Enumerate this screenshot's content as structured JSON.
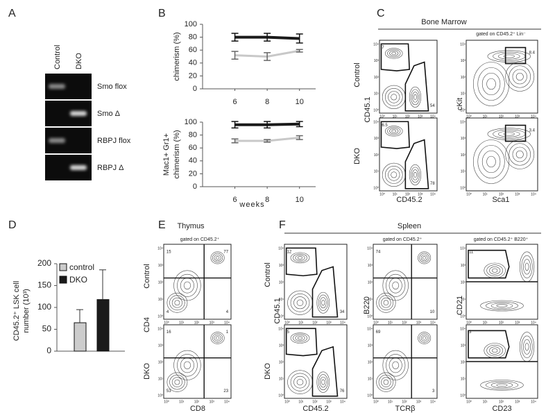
{
  "panel_labels": [
    "A",
    "B",
    "C",
    "D",
    "E",
    "F"
  ],
  "gel": {
    "lanes": [
      "Control",
      "DKO"
    ],
    "rows": [
      "Smo flox",
      "Smo Δ",
      "RBPJ flox",
      "RBPJ Δ"
    ]
  },
  "flow_ticks": [
    "10⁰",
    "10¹",
    "10²",
    "10³",
    "10⁴"
  ],
  "chart_data": [
    {
      "type": "line",
      "ylabel": [
        "chimerism (%)"
      ],
      "x": [
        6,
        8,
        10
      ],
      "xlim": [
        4,
        11
      ],
      "xticks": [
        6,
        8,
        10
      ],
      "ylim": [
        0,
        100
      ],
      "yticks": [
        0,
        20,
        40,
        60,
        80,
        100
      ],
      "series": [
        {
          "color": "#1a1a1a",
          "values": [
            80,
            80,
            78
          ],
          "errors": [
            6,
            6,
            7
          ]
        },
        {
          "color": "#c8c8c8",
          "values": [
            52,
            50,
            59
          ],
          "errors": [
            6,
            6,
            2
          ]
        }
      ]
    },
    {
      "type": "line",
      "ylabel": [
        "Mac1+ Gr1+",
        "chimerism (%)"
      ],
      "xlabel": "weeks",
      "x": [
        6,
        8,
        10
      ],
      "xlim": [
        4,
        11
      ],
      "xticks": [
        6,
        8,
        10
      ],
      "ylim": [
        0,
        100
      ],
      "yticks": [
        0,
        20,
        40,
        60,
        80,
        100
      ],
      "series": [
        {
          "color": "#1a1a1a",
          "values": [
            96,
            96,
            97
          ],
          "errors": [
            5,
            5,
            4
          ]
        },
        {
          "color": "#c8c8c8",
          "values": [
            71,
            71,
            76
          ],
          "errors": [
            3,
            2,
            3
          ]
        }
      ]
    },
    {
      "type": "bar",
      "ylabel": [
        "CD45.2⁺ LSK cell",
        "number (10³)"
      ],
      "categories": [
        null
      ],
      "ylim": [
        0,
        200
      ],
      "yticks": [
        0,
        50,
        100,
        150,
        200
      ],
      "series": [
        {
          "name": "control",
          "color": "#cccccc",
          "values": [
            65
          ],
          "errors": [
            30
          ]
        },
        {
          "name": "DKO",
          "color": "#1a1a1a",
          "values": [
            118
          ],
          "errors": [
            68
          ]
        }
      ]
    }
  ],
  "bone_marrow": {
    "title": "Bone Marrow",
    "rows": [
      "Control",
      "DKO"
    ],
    "notes": [
      "gated on CD45.2⁺ Lin⁻"
    ],
    "plots": [
      {
        "ylabel": "CD45.1",
        "xlabel": "CD45.2",
        "gates": [
          [
            "7",
            "54"
          ],
          [
            "6.5",
            "78"
          ]
        ]
      },
      {
        "ylabel": "cKit",
        "xlabel": "Sca1",
        "gates": [
          [
            "8.4"
          ],
          [
            "3.4"
          ]
        ]
      }
    ]
  },
  "thymus": {
    "title": "Thymus",
    "rows": [
      "Control",
      "DKO"
    ],
    "notes": [
      "gated on CD45.2⁺"
    ],
    "plots": [
      {
        "ylabel": "CD4",
        "xlabel": "CD8",
        "gates": [
          [
            "15",
            "77",
            "4",
            "4"
          ],
          [
            "16",
            "1",
            "53",
            "23"
          ]
        ]
      }
    ]
  },
  "spleen": {
    "title": "Spleen",
    "rows": [
      "Control",
      "DKO"
    ],
    "notes": [
      "gated on CD45.2⁺",
      "gated on CD45.2⁺ B220⁺"
    ],
    "plots": [
      {
        "ylabel": "CD45.1",
        "xlabel": "CD45.2",
        "gates": [
          [
            "12",
            "34"
          ],
          [
            "5",
            "76"
          ]
        ]
      },
      {
        "ylabel": "B220",
        "xlabel": "TCRβ",
        "gates": [
          [
            "74",
            "10"
          ],
          [
            "69",
            "3"
          ]
        ]
      },
      {
        "ylabel": "CD21",
        "xlabel": "CD23",
        "gates": [
          [
            "11"
          ],
          [
            "3"
          ]
        ]
      }
    ]
  }
}
